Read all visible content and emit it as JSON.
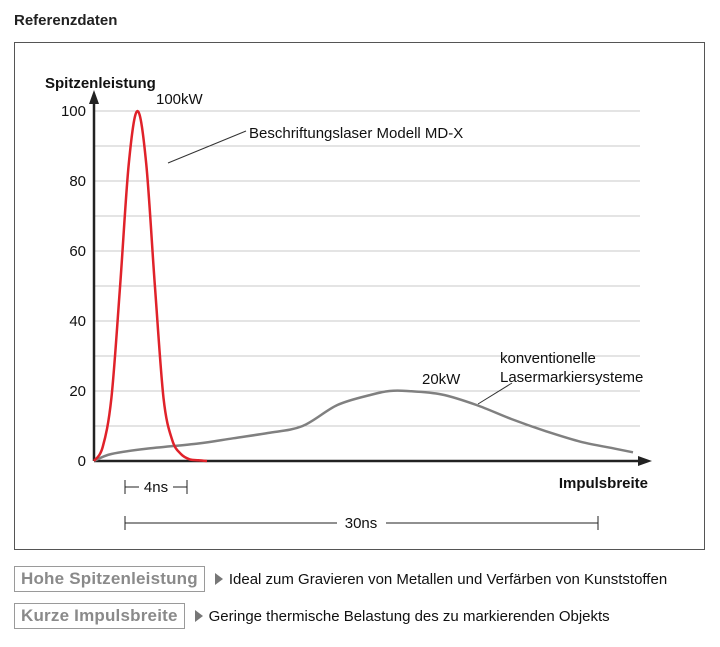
{
  "header": {
    "title": "Referenzdaten"
  },
  "chart_data": {
    "type": "line",
    "title": "",
    "ylabel": "Spitzenleistung",
    "xlabel": "Impulsbreite",
    "ylim": [
      0,
      100
    ],
    "xlim": [
      0,
      31
    ],
    "y_ticks": [
      "0",
      "20",
      "40",
      "60",
      "80",
      "100"
    ],
    "grid": true,
    "series": [
      {
        "name": "Beschriftungslaser Modell MD-X",
        "color": "#e0222a",
        "x": [
          0,
          0.5,
          1.0,
          1.5,
          2.0,
          2.5,
          3.0,
          3.5,
          4.0,
          4.5,
          5.0,
          5.5,
          6.0,
          6.5
        ],
        "y": [
          0,
          4,
          18,
          50,
          85,
          100,
          85,
          50,
          18,
          6,
          2,
          0.5,
          0.2,
          0
        ]
      },
      {
        "name": "konventionelle Lasermarkiersysteme",
        "color": "#808080",
        "x": [
          0,
          1,
          3,
          6,
          8,
          10,
          12,
          14,
          16,
          17,
          18,
          20,
          22,
          24,
          26,
          28,
          30,
          31
        ],
        "y": [
          0,
          2,
          3.5,
          5,
          6.5,
          8,
          10,
          16,
          19,
          20,
          20,
          19,
          16,
          12,
          8.5,
          5.5,
          3.5,
          2.5
        ]
      }
    ],
    "annotations": {
      "peak_red": "100kW",
      "peak_gray": "20kW",
      "red_label": "Beschriftungslaser Modell MD-X",
      "gray_label_line1": "konventionelle",
      "gray_label_line2": "Lasermarkiersysteme",
      "red_width": "4ns",
      "gray_width": "30ns"
    }
  },
  "info": [
    {
      "badge": "Hohe Spitzenleistung",
      "text": "Ideal zum Gravieren von Metallen und Verfärben von Kunststoffen"
    },
    {
      "badge": "Kurze Impulsbreite",
      "text": "Geringe thermische Belastung des zu markierenden Objekts"
    }
  ]
}
